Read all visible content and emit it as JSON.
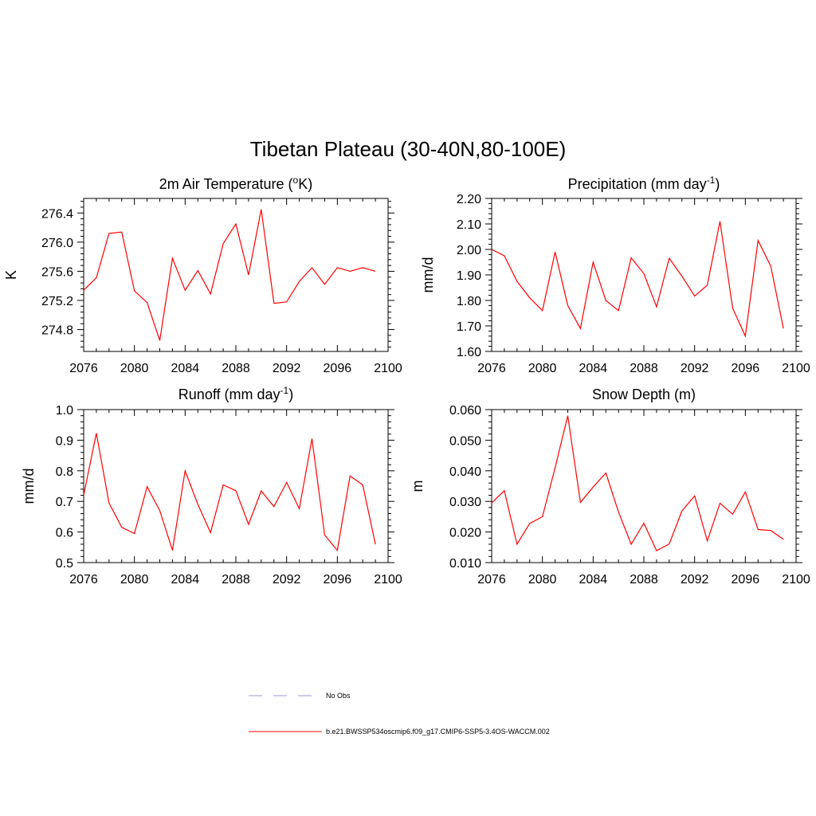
{
  "title": "Tibetan Plateau (30-40N,80-100E)",
  "colors": {
    "model": "#ff0000",
    "obs": "#9999dd",
    "axis": "#000000"
  },
  "legend": {
    "placement": "bottom-center",
    "items": [
      {
        "label": "No Obs",
        "style": "dashed",
        "color": "#9999dd"
      },
      {
        "label": "b.e21.BWSSP534oscmip6.f09_g17.CMIP6-SSP5-3.4OS-WACCM.002",
        "style": "solid",
        "color": "#ff0000"
      }
    ]
  },
  "chart_data": [
    {
      "type": "line",
      "title_main": "2m Air Temperature (",
      "title_sup": "o",
      "title_post": "K)",
      "ylabel": "K",
      "xlim": [
        2076,
        2100
      ],
      "ylim": [
        274.5,
        276.6
      ],
      "xticks": [
        2076,
        2080,
        2084,
        2088,
        2092,
        2096,
        2100
      ],
      "yticks": [
        274.8,
        275.2,
        275.6,
        276.0,
        276.4
      ],
      "ytick_labels": [
        "274.8",
        "275.2",
        "275.6",
        "276.0",
        "276.4"
      ],
      "x": [
        2076,
        2077,
        2078,
        2079,
        2080,
        2081,
        2082,
        2083,
        2084,
        2085,
        2086,
        2087,
        2088,
        2089,
        2090,
        2091,
        2092,
        2093,
        2094,
        2095,
        2096,
        2097,
        2098,
        2099
      ],
      "values": [
        275.34,
        275.51,
        276.12,
        276.14,
        275.33,
        275.17,
        274.65,
        275.78,
        275.34,
        275.61,
        275.29,
        275.98,
        276.25,
        275.55,
        276.45,
        275.16,
        275.18,
        275.46,
        275.65,
        275.42,
        275.65,
        275.6,
        275.65,
        275.6
      ]
    },
    {
      "type": "line",
      "title_main": "Precipitation (mm day",
      "title_sup": "-1",
      "title_post": ")",
      "ylabel": "mm/d",
      "xlim": [
        2076,
        2100
      ],
      "ylim": [
        1.6,
        2.2
      ],
      "xticks": [
        2076,
        2080,
        2084,
        2088,
        2092,
        2096,
        2100
      ],
      "yticks": [
        1.6,
        1.7,
        1.8,
        1.9,
        2.0,
        2.1,
        2.2
      ],
      "ytick_labels": [
        "1.60",
        "1.70",
        "1.80",
        "1.90",
        "2.00",
        "2.10",
        "2.20"
      ],
      "x": [
        2076,
        2077,
        2078,
        2079,
        2080,
        2081,
        2082,
        2083,
        2084,
        2085,
        2086,
        2087,
        2088,
        2089,
        2090,
        2091,
        2092,
        2093,
        2094,
        2095,
        2096,
        2097,
        2098,
        2099
      ],
      "values": [
        2.0,
        1.975,
        1.875,
        1.81,
        1.76,
        1.99,
        1.78,
        1.69,
        1.95,
        1.8,
        1.76,
        1.967,
        1.905,
        1.775,
        1.965,
        1.895,
        1.817,
        1.86,
        2.11,
        1.77,
        1.66,
        2.035,
        1.935,
        1.69
      ]
    },
    {
      "type": "line",
      "title_main": "Runoff (mm day",
      "title_sup": "-1",
      "title_post": ")",
      "ylabel": "mm/d",
      "xlim": [
        2076,
        2100
      ],
      "ylim": [
        0.5,
        1.0
      ],
      "xticks": [
        2076,
        2080,
        2084,
        2088,
        2092,
        2096,
        2100
      ],
      "yticks": [
        0.5,
        0.6,
        0.7,
        0.8,
        0.9,
        1.0
      ],
      "ytick_labels": [
        "0.5",
        "0.6",
        "0.7",
        "0.8",
        "0.9",
        "1.0"
      ],
      "x": [
        2076,
        2077,
        2078,
        2079,
        2080,
        2081,
        2082,
        2083,
        2084,
        2085,
        2086,
        2087,
        2088,
        2089,
        2090,
        2091,
        2092,
        2093,
        2094,
        2095,
        2096,
        2097,
        2098,
        2099
      ],
      "values": [
        0.72,
        0.923,
        0.695,
        0.615,
        0.595,
        0.748,
        0.67,
        0.54,
        0.8,
        0.69,
        0.598,
        0.754,
        0.735,
        0.625,
        0.734,
        0.683,
        0.762,
        0.676,
        0.905,
        0.59,
        0.54,
        0.783,
        0.754,
        0.56
      ]
    },
    {
      "type": "line",
      "title_main": "Snow Depth (m)",
      "title_sup": "",
      "title_post": "",
      "ylabel": "m",
      "xlim": [
        2076,
        2100
      ],
      "ylim": [
        0.01,
        0.06
      ],
      "xticks": [
        2076,
        2080,
        2084,
        2088,
        2092,
        2096,
        2100
      ],
      "yticks": [
        0.01,
        0.02,
        0.03,
        0.04,
        0.05,
        0.06
      ],
      "ytick_labels": [
        "0.010",
        "0.020",
        "0.030",
        "0.040",
        "0.050",
        "0.060"
      ],
      "x": [
        2076,
        2077,
        2078,
        2079,
        2080,
        2081,
        2082,
        2083,
        2084,
        2085,
        2086,
        2087,
        2088,
        2089,
        2090,
        2091,
        2092,
        2093,
        2094,
        2095,
        2096,
        2097,
        2098,
        2099
      ],
      "values": [
        0.0295,
        0.0335,
        0.016,
        0.0228,
        0.025,
        0.041,
        0.058,
        0.0297,
        0.0347,
        0.0393,
        0.0265,
        0.016,
        0.0229,
        0.0139,
        0.0161,
        0.0269,
        0.0318,
        0.0171,
        0.0294,
        0.0258,
        0.0331,
        0.0208,
        0.0205,
        0.0176
      ]
    }
  ]
}
